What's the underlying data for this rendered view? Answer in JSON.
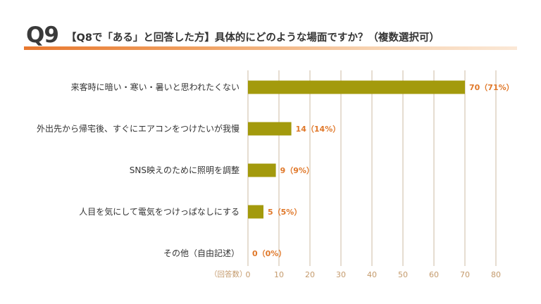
{
  "header": {
    "q_number": "Q9",
    "question": "【Q8で「ある」と回答した方】具体的にどのような場面ですか？（複数選択可）"
  },
  "colors": {
    "bar": "#a39a0c",
    "value_label": "#e0782a",
    "grid": "#ddd2c2",
    "tick": "#c49a6c"
  },
  "chart_data": {
    "type": "bar",
    "orientation": "horizontal",
    "categories": [
      "来客時に暗い・寒い・暑いと思われたくない",
      "外出先から帰宅後、すぐにエアコンをつけたいが我慢",
      "SNS映えのために照明を調整",
      "人目を気にして電気をつけっぱなしにする",
      "その他（自由記述）"
    ],
    "values": [
      70,
      14,
      9,
      5,
      0
    ],
    "value_labels": [
      "70（71%）",
      "14（14%）",
      "9（9%）",
      "5（5%）",
      "0（0%）"
    ],
    "xlim": [
      0,
      80
    ],
    "xticks": [
      0,
      10,
      20,
      30,
      40,
      50,
      60,
      70,
      80
    ],
    "xlabel": "（回答数）",
    "grid": true
  }
}
